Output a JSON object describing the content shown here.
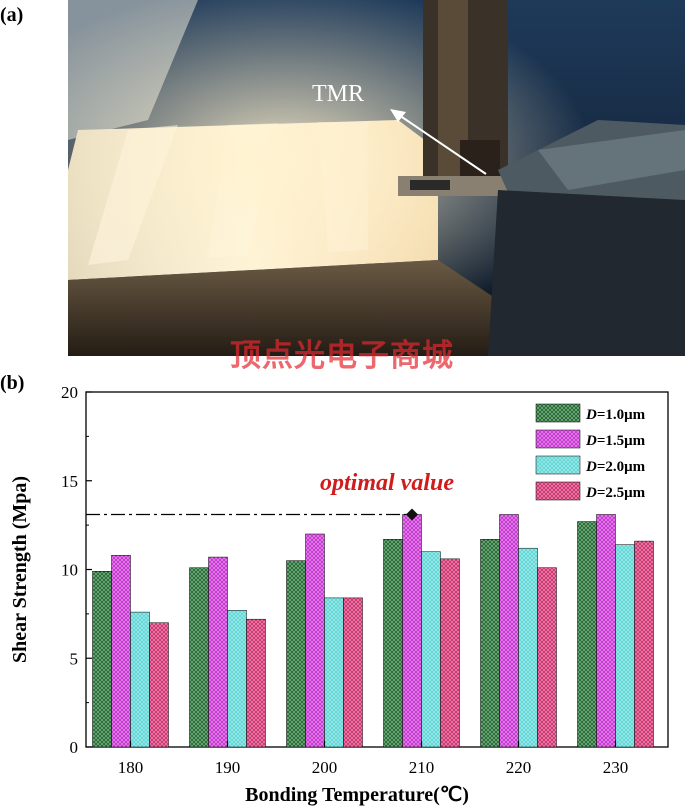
{
  "panel_a_label": "(a)",
  "panel_b_label": "(b)",
  "photo": {
    "annotation": "TMR"
  },
  "watermark": "顶点光电子商城",
  "colors": {
    "s1": "#1f6b2f",
    "s2": "#c832d2",
    "s3": "#5cd6d6",
    "s4": "#d0306e",
    "optimal_text": "#d01c1c",
    "marker": "#111111"
  },
  "chart_data": {
    "type": "bar",
    "xlabel": "Bonding Temperature(℃)",
    "ylabel": "Shear Strength (Mpa)",
    "categories": [
      "180",
      "190",
      "200",
      "210",
      "220",
      "230"
    ],
    "ylim": [
      0,
      20
    ],
    "yticks": [
      "0",
      "5",
      "10",
      "15",
      "20"
    ],
    "legend_prefix": "D",
    "legend_position": "top-right",
    "series": [
      {
        "name": "=1.0μm",
        "values": [
          9.9,
          10.1,
          10.5,
          11.7,
          11.7,
          12.7
        ]
      },
      {
        "name": "=1.5μm",
        "values": [
          10.8,
          10.7,
          12.0,
          13.1,
          13.1,
          13.1
        ]
      },
      {
        "name": "=2.0μm",
        "values": [
          7.6,
          7.7,
          8.4,
          11.0,
          11.2,
          11.4
        ]
      },
      {
        "name": "=2.5μm",
        "values": [
          7.0,
          7.2,
          8.4,
          10.6,
          10.1,
          11.6
        ]
      }
    ],
    "optimal": {
      "label": "optimal value",
      "value": 13.1,
      "category": "210",
      "series_index": 1
    }
  }
}
